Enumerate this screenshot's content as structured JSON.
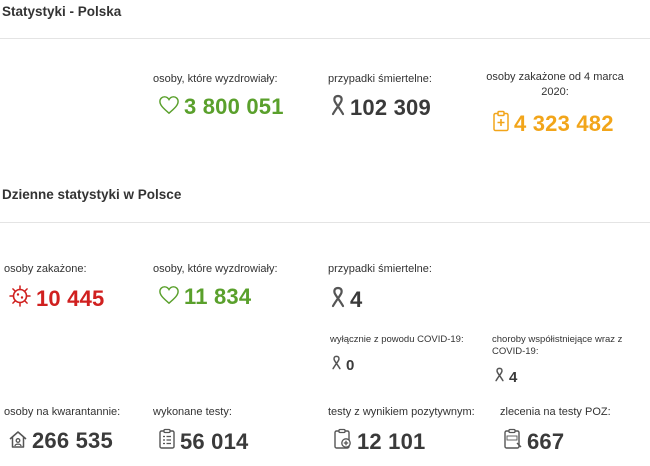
{
  "poland": {
    "title": "Statystyki - Polska",
    "recovered_label": "osoby, które wyzdrowiały:",
    "recovered_value": "3 800 051",
    "deaths_label": "przypadki śmiertelne:",
    "deaths_value": "102 309",
    "infected_label": "osoby zakażone od 4 marca 2020:",
    "infected_value": "4 323 482"
  },
  "daily": {
    "title": "Dzienne statystyki w Polsce",
    "infected_label": "osoby zakażone:",
    "infected_value": "10 445",
    "recovered_label": "osoby, które wyzdrowiały:",
    "recovered_value": "11 834",
    "deaths_label": "przypadki śmiertelne:",
    "deaths_value": "4",
    "covid_only_label": "wyłącznie z powodu COVID-19:",
    "covid_only_value": "0",
    "comorbid_label": "choroby współistniejące wraz z COVID-19:",
    "comorbid_value": "4",
    "quarantine_label": "osoby na kwarantannie:",
    "quarantine_value": "266 535",
    "tests_label": "wykonane testy:",
    "tests_value": "56 014",
    "positive_tests_label": "testy z wynikiem pozytywnym:",
    "positive_tests_value": "12 101",
    "poz_label": "zlecenia na testy POZ:",
    "poz_value": "667"
  },
  "icons": {
    "heart": "heart-icon",
    "ribbon": "ribbon-icon",
    "clipboard": "clipboard-medical-icon",
    "virus": "virus-icon",
    "house": "house-icon",
    "tests": "test-list-icon",
    "positive": "positive-test-icon",
    "poz": "poz-order-icon"
  },
  "colors": {
    "green": "#5aa02c",
    "orange": "#f2a51a",
    "red": "#d0201f",
    "dark": "#3a3a3a"
  }
}
